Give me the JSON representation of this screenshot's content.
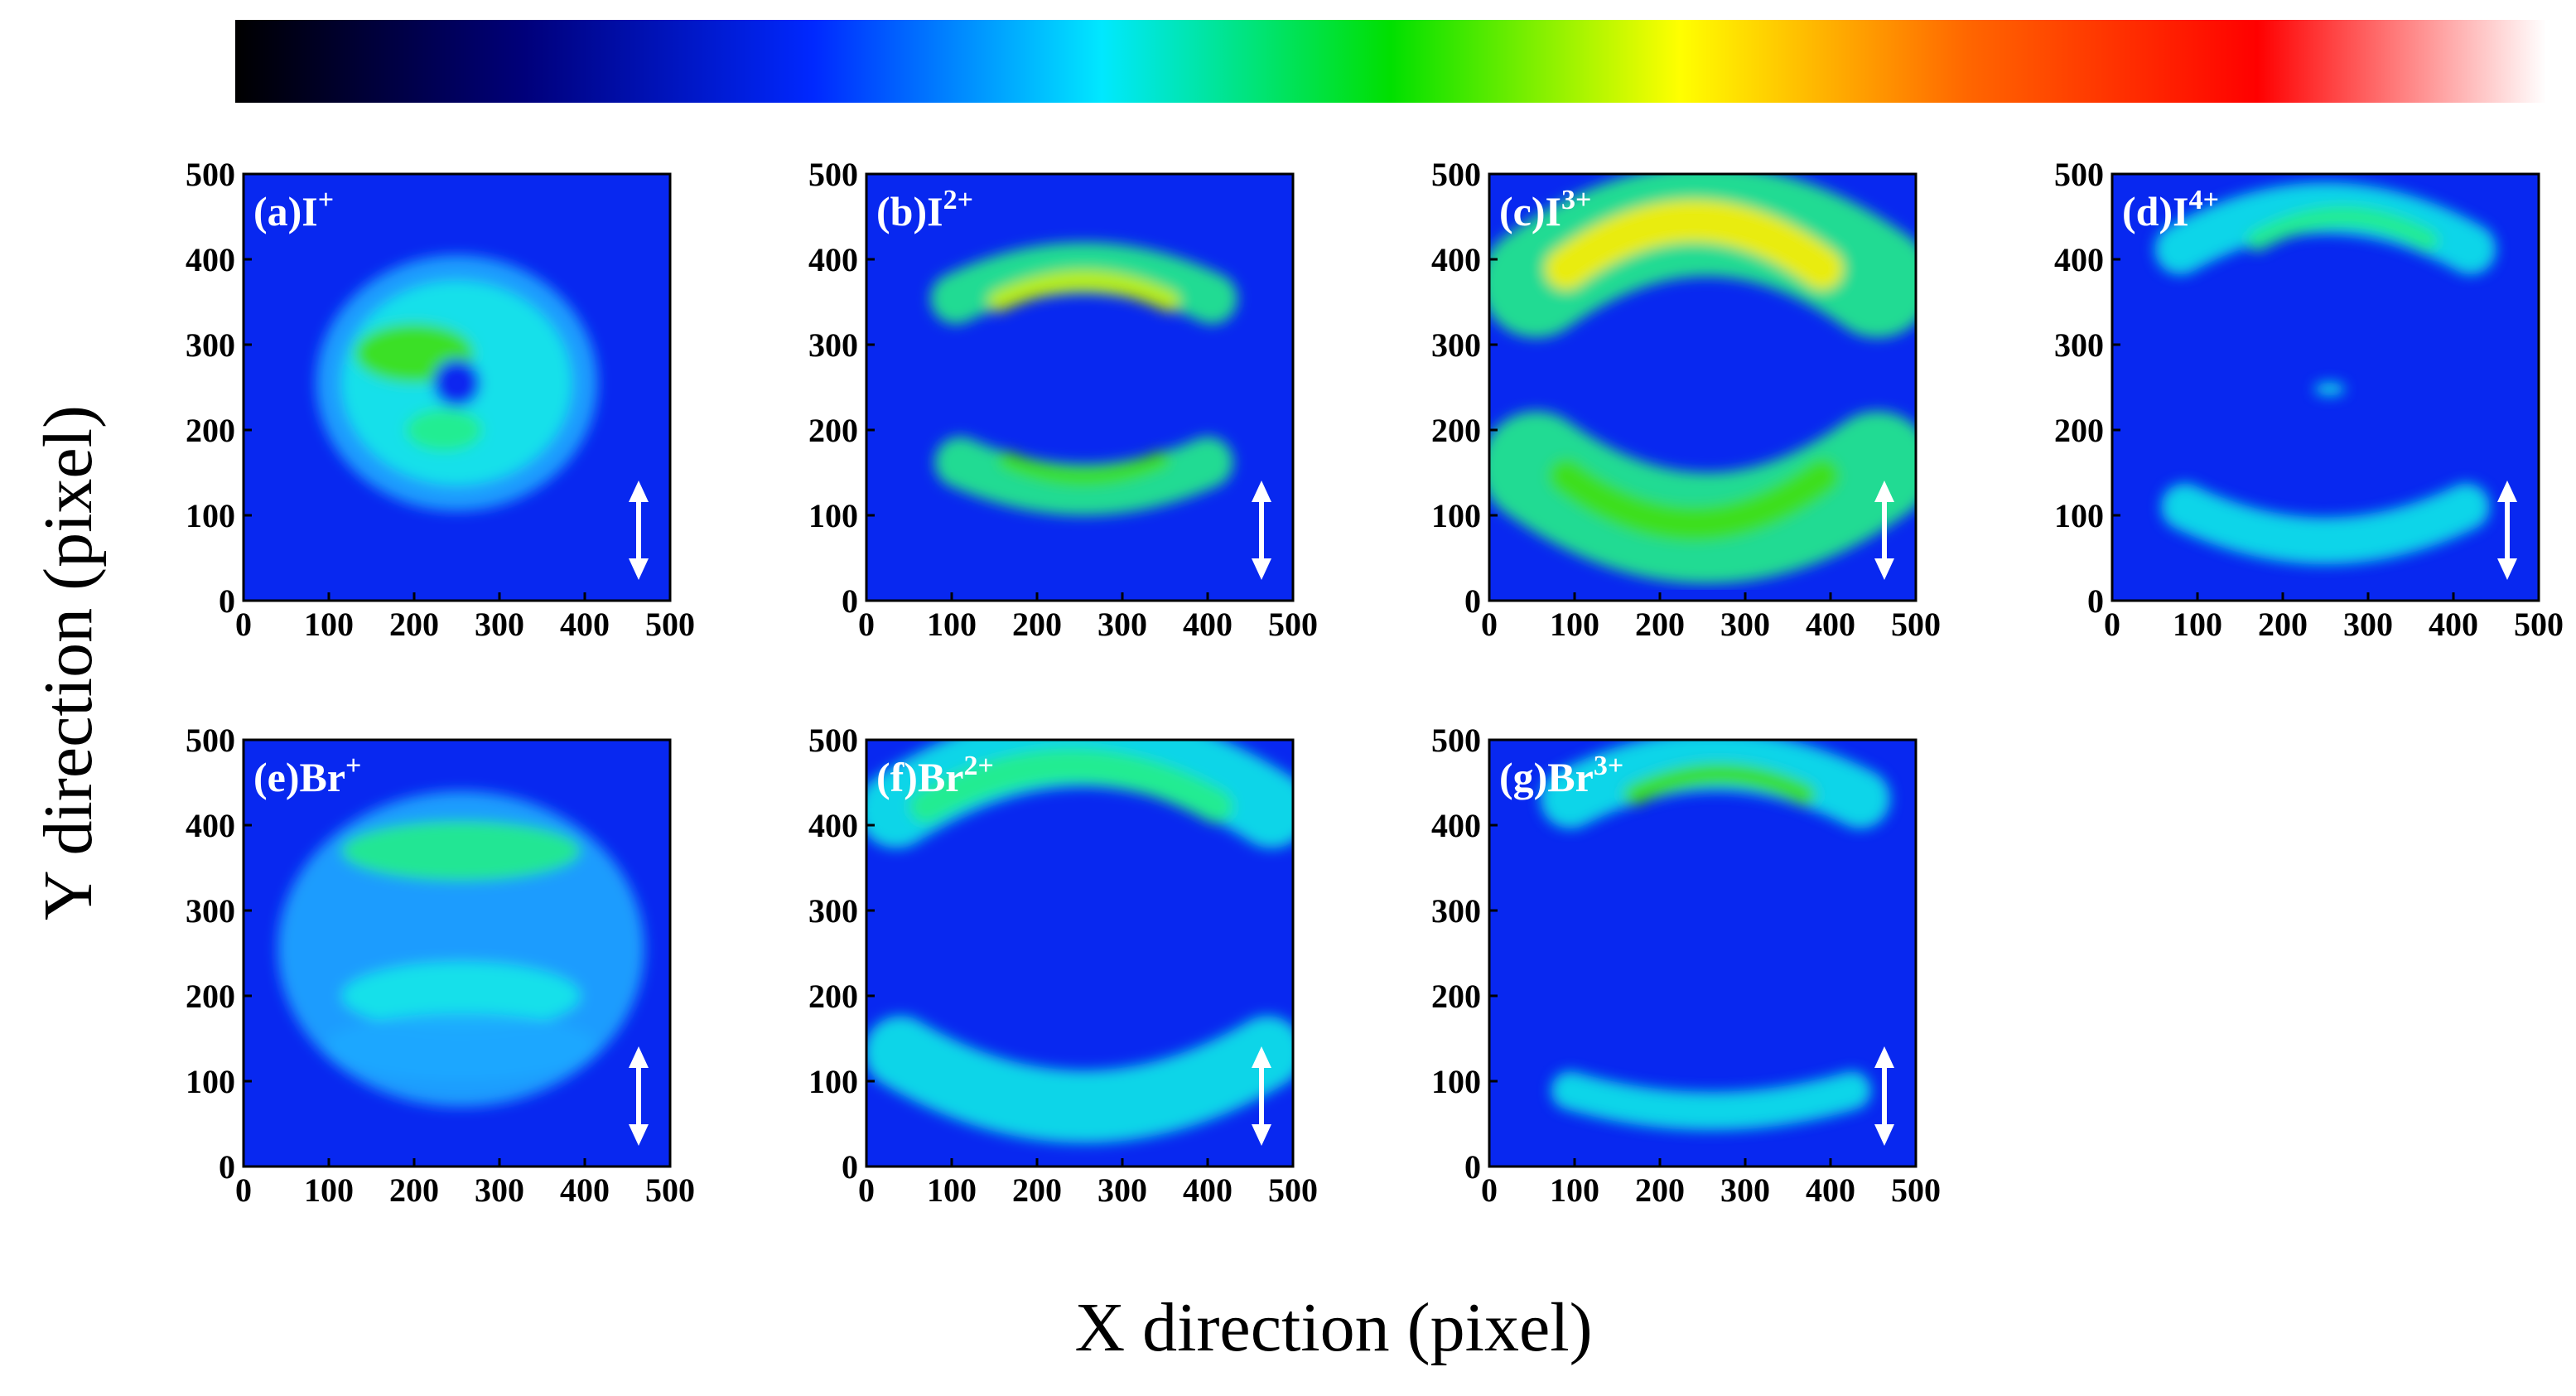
{
  "chart_data": {
    "type": "heatmap",
    "xlabel": "X direction (pixel)",
    "ylabel": "Y direction (pixel)",
    "colorbar": {
      "orientation": "horizontal",
      "stops": [
        "#000000",
        "#00007a",
        "#0028ff",
        "#00e8ff",
        "#00e000",
        "#ffff00",
        "#ff6600",
        "#ff0000",
        "#ffffff"
      ]
    },
    "background_color": "#0828f0",
    "panels": [
      {
        "id": "a",
        "label": "(a)I",
        "charge": "+",
        "xlim": [
          0,
          500
        ],
        "ylim": [
          0,
          500
        ],
        "xticks": [
          0,
          100,
          200,
          300,
          400,
          500
        ],
        "yticks": [
          0,
          100,
          200,
          300,
          400,
          500
        ],
        "arrow": "vertical"
      },
      {
        "id": "b",
        "label": "(b)I",
        "charge": "2+",
        "xlim": [
          0,
          500
        ],
        "ylim": [
          0,
          500
        ],
        "xticks": [
          0,
          100,
          200,
          300,
          400,
          500
        ],
        "yticks": [
          0,
          100,
          200,
          300,
          400,
          500
        ],
        "arrow": "vertical"
      },
      {
        "id": "c",
        "label": "(c)I",
        "charge": "3+",
        "xlim": [
          0,
          500
        ],
        "ylim": [
          0,
          500
        ],
        "xticks": [
          0,
          100,
          200,
          300,
          400,
          500
        ],
        "yticks": [
          0,
          100,
          200,
          300,
          400,
          500
        ],
        "arrow": "vertical"
      },
      {
        "id": "d",
        "label": "(d)I",
        "charge": "4+",
        "xlim": [
          0,
          500
        ],
        "ylim": [
          0,
          500
        ],
        "xticks": [
          0,
          100,
          200,
          300,
          400,
          500
        ],
        "yticks": [
          0,
          100,
          200,
          300,
          400,
          500
        ],
        "arrow": "vertical"
      },
      {
        "id": "e",
        "label": "(e)Br",
        "charge": "+",
        "xlim": [
          0,
          500
        ],
        "ylim": [
          0,
          500
        ],
        "xticks": [
          0,
          100,
          200,
          300,
          400,
          500
        ],
        "yticks": [
          0,
          100,
          200,
          300,
          400,
          500
        ],
        "arrow": "vertical"
      },
      {
        "id": "f",
        "label": "(f)Br",
        "charge": "2+",
        "xlim": [
          0,
          500
        ],
        "ylim": [
          0,
          500
        ],
        "xticks": [
          0,
          100,
          200,
          300,
          400,
          500
        ],
        "yticks": [
          0,
          100,
          200,
          300,
          400,
          500
        ],
        "arrow": "vertical"
      },
      {
        "id": "g",
        "label": "(g)Br",
        "charge": "3+",
        "xlim": [
          0,
          500
        ],
        "ylim": [
          0,
          500
        ],
        "xticks": [
          0,
          100,
          200,
          300,
          400,
          500
        ],
        "yticks": [
          0,
          100,
          200,
          300,
          400,
          500
        ],
        "arrow": "vertical"
      }
    ]
  }
}
